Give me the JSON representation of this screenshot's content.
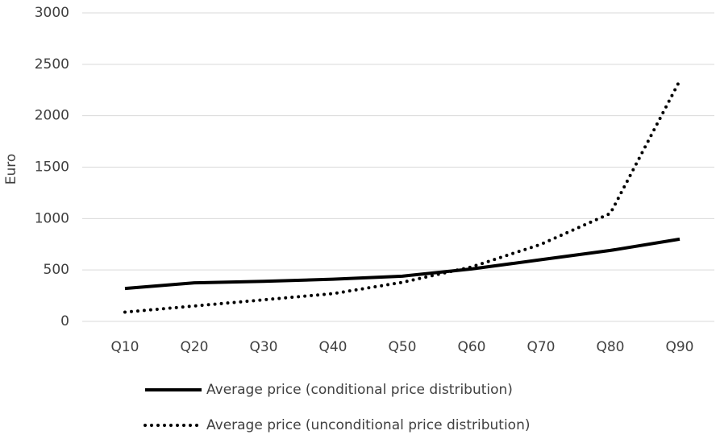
{
  "chart_data": {
    "type": "line",
    "y_label": "Euro",
    "categories": [
      "Q10",
      "Q20",
      "Q30",
      "Q40",
      "Q50",
      "Q60",
      "Q70",
      "Q80",
      "Q90"
    ],
    "series": [
      {
        "name": "Average price (conditional price distribution)",
        "color": "#000000",
        "style": "solid",
        "values": [
          320,
          375,
          390,
          410,
          440,
          510,
          600,
          690,
          800
        ]
      },
      {
        "name": "Average price (unconditional price distribution)",
        "color": "#000000",
        "style": "dotted",
        "values": [
          90,
          150,
          210,
          270,
          380,
          530,
          750,
          1050,
          2340
        ]
      }
    ],
    "ylim": [
      0,
      3000
    ],
    "yticks": [
      0,
      500,
      1000,
      1500,
      2000,
      2500,
      3000
    ],
    "grid": true,
    "legend": "bottom"
  }
}
